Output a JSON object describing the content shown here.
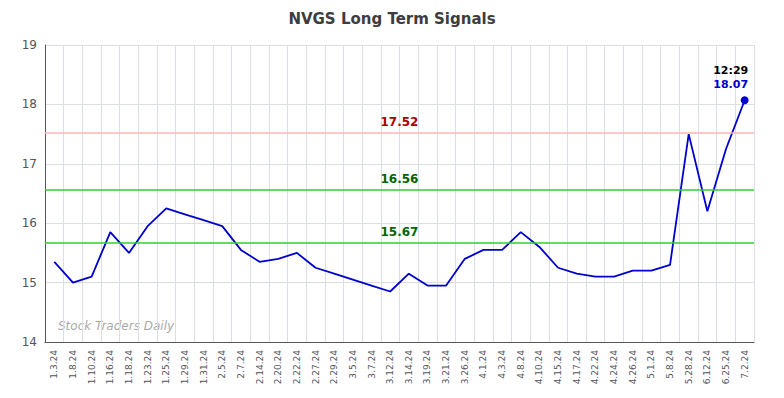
{
  "chart_data": {
    "type": "line",
    "title": "NVGS Long Term Signals",
    "categories": [
      "1.3.24",
      "1.8.24",
      "1.10.24",
      "1.16.24",
      "1.18.24",
      "1.23.24",
      "1.25.24",
      "1.29.24",
      "1.31.24",
      "2.5.24",
      "2.7.24",
      "2.14.24",
      "2.20.24",
      "2.22.24",
      "2.27.24",
      "2.29.24",
      "3.5.24",
      "3.7.24",
      "3.12.24",
      "3.14.24",
      "3.19.24",
      "3.21.24",
      "3.26.24",
      "4.1.24",
      "4.3.24",
      "4.8.24",
      "4.10.24",
      "4.15.24",
      "4.17.24",
      "4.22.24",
      "4.24.24",
      "4.26.24",
      "5.1.24",
      "5.8.24",
      "5.28.24",
      "6.12.24",
      "6.25.24",
      "7.2.24"
    ],
    "values": [
      15.35,
      15.0,
      15.1,
      15.85,
      15.5,
      15.95,
      16.25,
      16.15,
      16.05,
      15.95,
      15.55,
      15.35,
      15.4,
      15.5,
      15.25,
      15.15,
      15.05,
      14.95,
      14.85,
      15.15,
      14.95,
      14.95,
      15.4,
      15.55,
      15.55,
      15.85,
      15.6,
      15.25,
      15.15,
      15.1,
      15.1,
      15.2,
      15.2,
      15.3,
      17.5,
      16.2,
      17.25,
      18.07
    ],
    "color": "#0000cc",
    "hlines": [
      {
        "value": 17.52,
        "label": "17.52",
        "color": "#ffb3b3",
        "label_color": "#aa0000"
      },
      {
        "value": 16.56,
        "label": "16.56",
        "color": "#33cc33",
        "label_color": "#006600"
      },
      {
        "value": 15.67,
        "label": "15.67",
        "color": "#33cc33",
        "label_color": "#006600"
      }
    ],
    "last_time": "12:29",
    "last_price": "18.07",
    "watermark": "Stock Traders Daily",
    "ylim": [
      14,
      19
    ],
    "yticks": [
      14,
      15,
      16,
      17,
      18,
      19
    ],
    "grid": true
  }
}
